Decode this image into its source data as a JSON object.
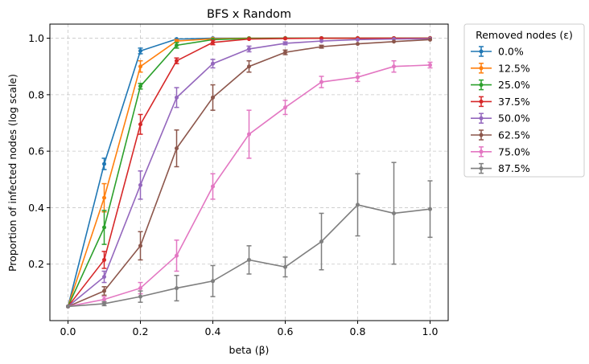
{
  "chart_data": {
    "type": "line",
    "title": "BFS x Random",
    "xlabel": "beta (β)",
    "ylabel": "Proportion of infected nodes (log scale)",
    "xlim": [
      -0.05,
      1.05
    ],
    "ylim": [
      0.0,
      1.05
    ],
    "xticks": [
      "0.0",
      "0.2",
      "0.4",
      "0.6",
      "0.8",
      "1.0"
    ],
    "yticks": [
      "0.2",
      "0.4",
      "0.6",
      "0.8",
      "1.0"
    ],
    "grid": true,
    "legend_title": "Removed nodes (ε)",
    "legend_position": "outside-right",
    "x": [
      0.0,
      0.1,
      0.2,
      0.3,
      0.4,
      0.5,
      0.6,
      0.7,
      0.8,
      0.9,
      1.0
    ],
    "series": [
      {
        "name": "0.0%",
        "color": "#1f77b4",
        "values": [
          0.05,
          0.555,
          0.955,
          0.997,
          1.0,
          1.0,
          1.0,
          1.0,
          1.0,
          1.0,
          1.0
        ],
        "errors": [
          0.003,
          0.02,
          0.01,
          0.003,
          0.001,
          0.001,
          0.001,
          0.001,
          0.001,
          0.001,
          0.001
        ]
      },
      {
        "name": "12.5%",
        "color": "#ff7f0e",
        "values": [
          0.05,
          0.435,
          0.9,
          0.99,
          0.998,
          1.0,
          1.0,
          1.0,
          1.0,
          1.0,
          1.0
        ],
        "errors": [
          0.003,
          0.05,
          0.02,
          0.005,
          0.002,
          0.001,
          0.001,
          0.001,
          0.001,
          0.001,
          0.001
        ]
      },
      {
        "name": "25.0%",
        "color": "#2ca02c",
        "values": [
          0.05,
          0.33,
          0.83,
          0.975,
          0.995,
          0.999,
          1.0,
          1.0,
          1.0,
          1.0,
          1.0
        ],
        "errors": [
          0.003,
          0.06,
          0.01,
          0.01,
          0.004,
          0.002,
          0.001,
          0.001,
          0.001,
          0.001,
          0.001
        ]
      },
      {
        "name": "37.5%",
        "color": "#d62728",
        "values": [
          0.05,
          0.215,
          0.695,
          0.92,
          0.985,
          0.997,
          0.999,
          1.0,
          1.0,
          1.0,
          1.0
        ],
        "errors": [
          0.003,
          0.03,
          0.035,
          0.01,
          0.008,
          0.003,
          0.002,
          0.001,
          0.001,
          0.001,
          0.001
        ]
      },
      {
        "name": "50.0%",
        "color": "#9467bd",
        "values": [
          0.05,
          0.155,
          0.48,
          0.79,
          0.91,
          0.962,
          0.982,
          0.99,
          0.995,
          0.997,
          0.998
        ],
        "errors": [
          0.003,
          0.02,
          0.05,
          0.035,
          0.015,
          0.01,
          0.005,
          0.003,
          0.002,
          0.002,
          0.001
        ]
      },
      {
        "name": "62.5%",
        "color": "#8c564b",
        "values": [
          0.05,
          0.105,
          0.265,
          0.61,
          0.79,
          0.9,
          0.95,
          0.97,
          0.98,
          0.988,
          0.995
        ],
        "errors": [
          0.003,
          0.015,
          0.05,
          0.065,
          0.045,
          0.02,
          0.008,
          0.005,
          0.004,
          0.003,
          0.002
        ]
      },
      {
        "name": "75.0%",
        "color": "#e377c2",
        "values": [
          0.05,
          0.075,
          0.115,
          0.23,
          0.475,
          0.66,
          0.755,
          0.845,
          0.862,
          0.9,
          0.905
        ],
        "errors": [
          0.003,
          0.01,
          0.02,
          0.055,
          0.045,
          0.085,
          0.025,
          0.02,
          0.015,
          0.02,
          0.01
        ]
      },
      {
        "name": "87.5%",
        "color": "#7f7f7f",
        "values": [
          0.05,
          0.06,
          0.085,
          0.115,
          0.14,
          0.215,
          0.19,
          0.28,
          0.41,
          0.38,
          0.395
        ],
        "errors": [
          0.003,
          0.007,
          0.02,
          0.045,
          0.055,
          0.05,
          0.035,
          0.1,
          0.11,
          0.18,
          0.1
        ]
      }
    ]
  }
}
